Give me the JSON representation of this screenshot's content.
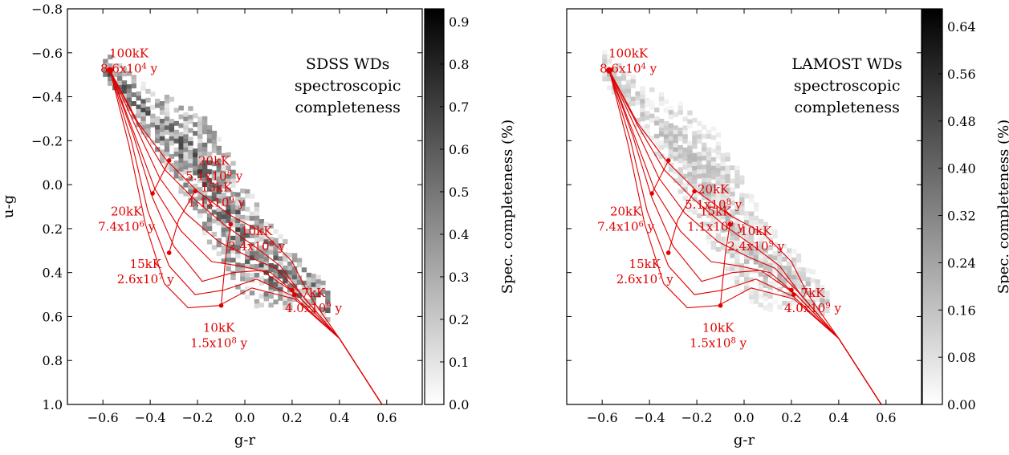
{
  "chart_data": [
    {
      "type": "heatmap",
      "title": "SDSS WDs",
      "title_lines": [
        "SDSS WDs",
        "spectroscopic",
        "completeness"
      ],
      "xlabel": "g-r",
      "ylabel": "u-g",
      "xlim": [
        -0.75,
        0.75
      ],
      "ylim": [
        1.0,
        -0.8
      ],
      "x_inverted": false,
      "y_inverted": true,
      "x_ticks": [
        -0.6,
        -0.4,
        -0.2,
        0.0,
        0.2,
        0.4,
        0.6
      ],
      "x_tick_labels": [
        "−0.6",
        "−0.4",
        "−0.2",
        "0.0",
        "0.2",
        "0.4",
        "0.6"
      ],
      "y_ticks": [
        -0.8,
        -0.6,
        -0.4,
        -0.2,
        0.0,
        0.2,
        0.4,
        0.6,
        0.8,
        1.0
      ],
      "y_tick_labels": [
        "−0.8",
        "−0.6",
        "−0.4",
        "−0.2",
        "0.0",
        "0.2",
        "0.4",
        "0.6",
        "0.8",
        "1.0"
      ],
      "colorbar": {
        "label": "Spec. completeness (%)",
        "range": [
          0.0,
          0.93
        ],
        "ticks": [
          0.0,
          0.1,
          0.2,
          0.3,
          0.4,
          0.5,
          0.6,
          0.7,
          0.8,
          0.9
        ],
        "tick_labels": [
          "0.0",
          "0.1",
          "0.2",
          "0.3",
          "0.4",
          "0.5",
          "0.6",
          "0.7",
          "0.8",
          "0.9"
        ],
        "colormap": "gray_r"
      },
      "grid": false,
      "density_level": 0.45,
      "annotations": [
        {
          "lines": [
            "100kK",
            "8.6x10^4 y"
          ],
          "x": -0.49,
          "y": -0.58
        },
        {
          "lines": [
            "20kK",
            "5.1x10^8 y"
          ],
          "x": -0.13,
          "y": -0.09
        },
        {
          "lines": [
            "15kK",
            "1.1x10^9 y"
          ],
          "x": -0.12,
          "y": 0.03
        },
        {
          "lines": [
            "20kK",
            "7.4x10^6 y"
          ],
          "x": -0.5,
          "y": 0.14
        },
        {
          "lines": [
            "10kK",
            "2.4x10^9 y"
          ],
          "x": 0.05,
          "y": 0.23
        },
        {
          "lines": [
            "15kK",
            "2.6x10^7 y"
          ],
          "x": -0.42,
          "y": 0.38
        },
        {
          "lines": [
            "7kK",
            "4.0x10^9 y"
          ],
          "x": 0.29,
          "y": 0.51
        },
        {
          "lines": [
            "10kK",
            "1.5x10^8 y"
          ],
          "x": -0.11,
          "y": 0.67
        }
      ]
    },
    {
      "type": "heatmap",
      "title": "LAMOST WDs",
      "title_lines": [
        "LAMOST WDs",
        "spectroscopic",
        "completeness"
      ],
      "xlabel": "g-r",
      "ylabel": "",
      "xlim": [
        -0.75,
        0.75
      ],
      "ylim": [
        1.0,
        -0.8
      ],
      "x_inverted": false,
      "y_inverted": true,
      "x_ticks": [
        -0.6,
        -0.4,
        -0.2,
        0.0,
        0.2,
        0.4,
        0.6
      ],
      "x_tick_labels": [
        "−0.6",
        "−0.4",
        "−0.2",
        "0.0",
        "0.2",
        "0.4",
        "0.6"
      ],
      "y_ticks": [
        -0.8,
        -0.6,
        -0.4,
        -0.2,
        0.0,
        0.2,
        0.4,
        0.6,
        0.8,
        1.0
      ],
      "y_tick_labels": [],
      "colorbar": {
        "label": "Spec. completeness (%)",
        "range": [
          0.0,
          0.67
        ],
        "ticks": [
          0.0,
          0.08,
          0.16,
          0.24,
          0.32,
          0.4,
          0.48,
          0.56,
          0.64
        ],
        "tick_labels": [
          "0.00",
          "0.08",
          "0.16",
          "0.24",
          "0.32",
          "0.40",
          "0.48",
          "0.56",
          "0.64"
        ],
        "colormap": "gray_r"
      },
      "grid": false,
      "density_level": 0.18,
      "annotations": [
        {
          "lines": [
            "100kK",
            "8.6x10^4 y"
          ],
          "x": -0.49,
          "y": -0.58
        },
        {
          "lines": [
            "20kK",
            "5.1x10^8 y"
          ],
          "x": -0.13,
          "y": 0.04
        },
        {
          "lines": [
            "15kK",
            "1.1x10^9 y"
          ],
          "x": -0.12,
          "y": 0.14
        },
        {
          "lines": [
            "20kK",
            "7.4x10^6 y"
          ],
          "x": -0.5,
          "y": 0.14
        },
        {
          "lines": [
            "10kK",
            "2.4x10^9 y"
          ],
          "x": 0.05,
          "y": 0.23
        },
        {
          "lines": [
            "15kK",
            "2.6x10^7 y"
          ],
          "x": -0.42,
          "y": 0.38
        },
        {
          "lines": [
            "7kK",
            "4.0x10^9 y"
          ],
          "x": 0.29,
          "y": 0.51
        },
        {
          "lines": [
            "10kK",
            "1.5x10^8 y"
          ],
          "x": -0.11,
          "y": 0.67
        }
      ]
    }
  ],
  "model_tracks": {
    "color": "#e00000",
    "cooling_tracks": [
      [
        [
          -0.57,
          -0.52
        ],
        [
          -0.45,
          -0.28
        ],
        [
          -0.33,
          -0.11
        ],
        [
          -0.2,
          0.03
        ],
        [
          -0.06,
          0.14
        ],
        [
          0.08,
          0.22
        ],
        [
          0.2,
          0.35
        ],
        [
          0.27,
          0.5
        ],
        [
          0.4,
          0.7
        ],
        [
          0.58,
          1.0
        ]
      ],
      [
        [
          -0.57,
          -0.52
        ],
        [
          -0.45,
          -0.27
        ],
        [
          -0.34,
          -0.07
        ],
        [
          -0.22,
          0.06
        ],
        [
          -0.09,
          0.18
        ],
        [
          0.04,
          0.28
        ],
        [
          0.15,
          0.37
        ],
        [
          0.24,
          0.5
        ],
        [
          0.4,
          0.7
        ],
        [
          0.58,
          1.0
        ]
      ],
      [
        [
          -0.57,
          -0.52
        ],
        [
          -0.46,
          -0.26
        ],
        [
          -0.36,
          -0.03
        ],
        [
          -0.25,
          0.13
        ],
        [
          -0.11,
          0.26
        ],
        [
          0.02,
          0.33
        ],
        [
          0.13,
          0.38
        ],
        [
          0.23,
          0.49
        ],
        [
          0.4,
          0.7
        ],
        [
          0.58,
          1.0
        ]
      ],
      [
        [
          -0.57,
          -0.52
        ],
        [
          -0.47,
          -0.24
        ],
        [
          -0.38,
          0.02
        ],
        [
          -0.27,
          0.21
        ],
        [
          -0.14,
          0.35
        ],
        [
          -0.02,
          0.37
        ],
        [
          0.11,
          0.4
        ],
        [
          0.22,
          0.5
        ],
        [
          0.4,
          0.7
        ],
        [
          0.58,
          1.0
        ]
      ],
      [
        [
          -0.57,
          -0.52
        ],
        [
          -0.47,
          -0.22
        ],
        [
          -0.39,
          0.06
        ],
        [
          -0.3,
          0.28
        ],
        [
          -0.18,
          0.44
        ],
        [
          -0.05,
          0.4
        ],
        [
          0.07,
          0.39
        ],
        [
          0.22,
          0.5
        ],
        [
          0.4,
          0.7
        ],
        [
          0.58,
          1.0
        ]
      ],
      [
        [
          -0.57,
          -0.52
        ],
        [
          -0.48,
          -0.2
        ],
        [
          -0.41,
          0.12
        ],
        [
          -0.32,
          0.37
        ],
        [
          -0.21,
          0.5
        ],
        [
          -0.09,
          0.48
        ],
        [
          0.05,
          0.43
        ],
        [
          0.21,
          0.51
        ],
        [
          0.4,
          0.7
        ],
        [
          0.58,
          1.0
        ]
      ],
      [
        [
          -0.57,
          -0.52
        ],
        [
          -0.49,
          -0.18
        ],
        [
          -0.42,
          0.18
        ],
        [
          -0.34,
          0.45
        ],
        [
          -0.24,
          0.56
        ],
        [
          -0.11,
          0.55
        ],
        [
          0.03,
          0.47
        ],
        [
          0.21,
          0.52
        ],
        [
          0.4,
          0.7
        ],
        [
          0.58,
          1.0
        ]
      ]
    ],
    "isochrones": [
      [
        [
          -0.32,
          -0.11
        ],
        [
          -0.39,
          0.04
        ]
      ],
      [
        [
          -0.21,
          0.03
        ],
        [
          -0.28,
          0.16
        ],
        [
          -0.32,
          0.31
        ]
      ],
      [
        [
          -0.06,
          0.18
        ],
        [
          -0.08,
          0.32
        ],
        [
          -0.1,
          0.55
        ]
      ],
      [
        [
          0.19,
          0.47
        ],
        [
          0.21,
          0.5
        ]
      ]
    ],
    "marked_points": [
      [
        -0.57,
        -0.52
      ],
      [
        -0.32,
        -0.11
      ],
      [
        -0.39,
        0.04
      ],
      [
        -0.21,
        0.03
      ],
      [
        -0.32,
        0.31
      ],
      [
        -0.06,
        0.18
      ],
      [
        -0.1,
        0.55
      ],
      [
        0.2,
        0.48
      ],
      [
        0.21,
        0.5
      ]
    ]
  }
}
